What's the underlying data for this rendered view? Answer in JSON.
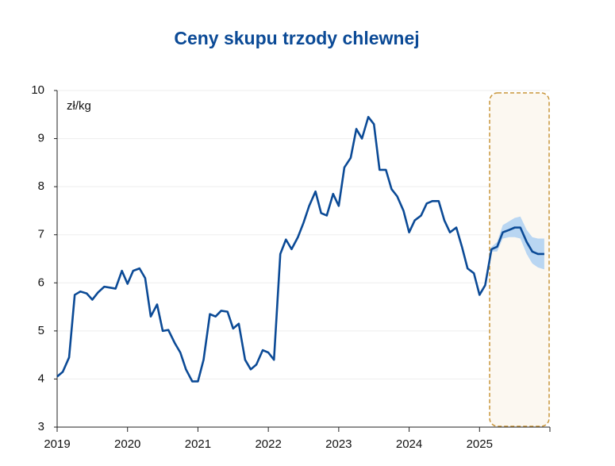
{
  "chart_data": {
    "type": "line",
    "title": "Ceny skupu trzody chlewnej",
    "annotation": "zł/kg",
    "x": [
      2019,
      2019.08,
      2019.17,
      2019.25,
      2019.33,
      2019.42,
      2019.5,
      2019.58,
      2019.67,
      2019.75,
      2019.83,
      2019.92,
      2020,
      2020.08,
      2020.17,
      2020.25,
      2020.33,
      2020.42,
      2020.5,
      2020.58,
      2020.67,
      2020.75,
      2020.83,
      2020.92,
      2021,
      2021.08,
      2021.17,
      2021.25,
      2021.33,
      2021.42,
      2021.5,
      2021.58,
      2021.67,
      2021.75,
      2021.83,
      2021.92,
      2022,
      2022.08,
      2022.17,
      2022.25,
      2022.33,
      2022.42,
      2022.5,
      2022.58,
      2022.67,
      2022.75,
      2022.83,
      2022.92,
      2023,
      2023.08,
      2023.17,
      2023.25,
      2023.33,
      2023.42,
      2023.5,
      2023.58,
      2023.67,
      2023.75,
      2023.83,
      2023.92,
      2024,
      2024.08,
      2024.17,
      2024.25,
      2024.33,
      2024.42,
      2024.5,
      2024.58,
      2024.67,
      2024.75,
      2024.83,
      2024.92,
      2025,
      2025.08,
      2025.17,
      2025.25,
      2025.33,
      2025.42,
      2025.5,
      2025.58,
      2025.67,
      2025.75,
      2025.83,
      2025.92
    ],
    "series": [
      {
        "color": "#0b4a96",
        "values": [
          4.05,
          4.15,
          4.45,
          5.75,
          5.82,
          5.78,
          5.65,
          5.8,
          5.92,
          5.9,
          5.88,
          6.25,
          5.98,
          6.25,
          6.3,
          6.1,
          5.3,
          5.55,
          5.0,
          5.02,
          4.75,
          4.55,
          4.2,
          3.95,
          3.95,
          4.4,
          5.35,
          5.3,
          5.42,
          5.4,
          5.05,
          5.15,
          4.4,
          4.2,
          4.3,
          4.6,
          4.55,
          4.4,
          6.6,
          6.9,
          6.7,
          6.95,
          7.25,
          7.6,
          7.9,
          7.45,
          7.4,
          7.85,
          7.6,
          8.4,
          8.6,
          9.2,
          9.0,
          9.45,
          9.3,
          8.35,
          8.35,
          7.95,
          7.8,
          7.5,
          7.05,
          7.3,
          7.4,
          7.65,
          7.7,
          7.7,
          7.3,
          7.05,
          7.15,
          6.75,
          6.3,
          6.2,
          5.75,
          5.95,
          6.7,
          6.75,
          7.05,
          7.1,
          7.15,
          7.15,
          6.85,
          6.65,
          6.6,
          6.6
        ]
      }
    ],
    "band": {
      "color": "#b9d6f2",
      "upper": [
        null,
        null,
        null,
        null,
        null,
        null,
        null,
        null,
        null,
        null,
        null,
        null,
        null,
        null,
        null,
        null,
        null,
        null,
        null,
        null,
        null,
        null,
        null,
        null,
        null,
        null,
        null,
        null,
        null,
        null,
        null,
        null,
        null,
        null,
        null,
        null,
        null,
        null,
        null,
        null,
        null,
        null,
        null,
        null,
        null,
        null,
        null,
        null,
        null,
        null,
        null,
        null,
        null,
        null,
        null,
        null,
        null,
        null,
        null,
        null,
        null,
        null,
        null,
        null,
        null,
        null,
        null,
        null,
        null,
        null,
        null,
        null,
        null,
        5.95,
        6.75,
        6.85,
        7.2,
        7.28,
        7.35,
        7.38,
        7.1,
        6.95,
        6.92,
        6.92
      ],
      "lower": [
        null,
        null,
        null,
        null,
        null,
        null,
        null,
        null,
        null,
        null,
        null,
        null,
        null,
        null,
        null,
        null,
        null,
        null,
        null,
        null,
        null,
        null,
        null,
        null,
        null,
        null,
        null,
        null,
        null,
        null,
        null,
        null,
        null,
        null,
        null,
        null,
        null,
        null,
        null,
        null,
        null,
        null,
        null,
        null,
        null,
        null,
        null,
        null,
        null,
        null,
        null,
        null,
        null,
        null,
        null,
        null,
        null,
        null,
        null,
        null,
        null,
        null,
        null,
        null,
        null,
        null,
        null,
        null,
        null,
        null,
        null,
        null,
        null,
        5.95,
        6.65,
        6.65,
        6.92,
        6.95,
        6.95,
        6.92,
        6.6,
        6.4,
        6.32,
        6.28
      ]
    },
    "xlim": [
      2019,
      2026
    ],
    "xticks": [
      2019,
      2020,
      2021,
      2022,
      2023,
      2024,
      2025
    ],
    "ylim": [
      3,
      10
    ],
    "yticks": [
      3,
      4,
      5,
      6,
      7,
      8,
      9,
      10
    ],
    "grid": true
  }
}
